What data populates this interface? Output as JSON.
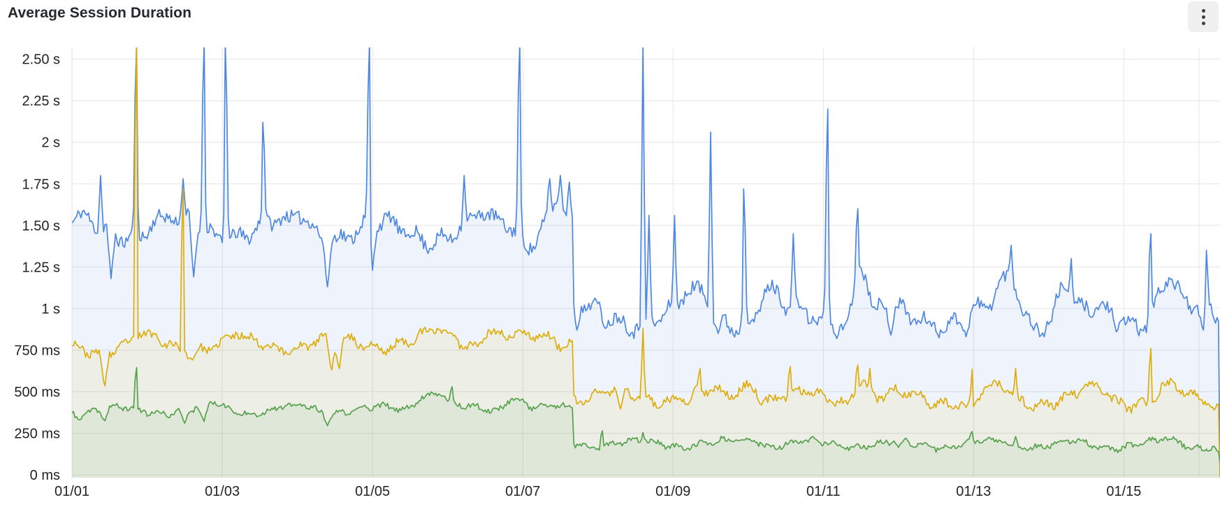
{
  "header": {
    "title": "Average Session Duration",
    "menu_icon": "kebab-vertical"
  },
  "chart_data": {
    "type": "line",
    "title": "Average Session Duration",
    "legend": "none",
    "grid": true,
    "colors": {
      "series_blue": "#4d86e3",
      "series_yellow": "#ddad0c",
      "series_green": "#56a14c",
      "gridline": "#e6e6e6",
      "axis_text": "#1f2226"
    },
    "y_axis": {
      "unit": "duration",
      "display_min_ms": -17,
      "display_max_ms": 2570,
      "ticks": [
        {
          "v": 0,
          "label": "0 ms"
        },
        {
          "v": 250,
          "label": "250 ms"
        },
        {
          "v": 500,
          "label": "500 ms"
        },
        {
          "v": 750,
          "label": "750 ms"
        },
        {
          "v": 1000,
          "label": "1 s"
        },
        {
          "v": 1250,
          "label": "1.25 s"
        },
        {
          "v": 1500,
          "label": "1.50 s"
        },
        {
          "v": 1750,
          "label": "1.75 s"
        },
        {
          "v": 2000,
          "label": "2 s"
        },
        {
          "v": 2250,
          "label": "2.25 s"
        },
        {
          "v": 2500,
          "label": "2.50 s"
        }
      ]
    },
    "x_axis": {
      "unit": "date",
      "domain_days": [
        0,
        15.28
      ],
      "day0_label": "01/01",
      "ticks": [
        {
          "day": 0,
          "label": "01/01"
        },
        {
          "day": 2,
          "label": "01/03"
        },
        {
          "day": 4,
          "label": "01/05"
        },
        {
          "day": 6,
          "label": "01/07"
        },
        {
          "day": 8,
          "label": "01/09"
        },
        {
          "day": 10,
          "label": "01/11"
        },
        {
          "day": 12,
          "label": "01/13"
        },
        {
          "day": 14,
          "label": "01/15"
        },
        {
          "day": 15,
          "label": ""
        }
      ]
    },
    "sample_step_days": 0.02,
    "series": [
      {
        "id": "blue",
        "color": "#4d86e3",
        "fill_opacity": 0.09,
        "line_width": 1.7,
        "seed": 11,
        "noise_ms": 40,
        "spike_width_days": 0.035,
        "dip_width_days": 0.06,
        "wander": [
          {
            "amp": 62,
            "period": 1.35,
            "phase": 0.2
          },
          {
            "amp": 36,
            "period": 0.34,
            "phase": 0.8
          }
        ],
        "baseline_segments_ms": [
          [
            0,
            6.67,
            1490,
            1450
          ],
          [
            6.67,
            15.28,
            955,
            950
          ]
        ],
        "step_drop_day": 6.67,
        "bumps": [
          [
            1.2,
            1560,
            0.25
          ],
          [
            3.0,
            1555,
            0.4
          ],
          [
            5.5,
            1570,
            0.5
          ],
          [
            6.45,
            1660,
            0.3
          ],
          [
            8.3,
            1150,
            0.3
          ],
          [
            9.3,
            1150,
            0.25
          ],
          [
            10.5,
            1280,
            0.2
          ],
          [
            12.45,
            1230,
            0.3
          ],
          [
            13.2,
            1170,
            0.2
          ],
          [
            14.6,
            1190,
            0.35
          ]
        ],
        "spikes": [
          [
            0.38,
            1800
          ],
          [
            0.85,
            2600
          ],
          [
            1.48,
            1780
          ],
          [
            1.75,
            2600
          ],
          [
            2.05,
            2600
          ],
          [
            2.55,
            2120
          ],
          [
            3.95,
            2600
          ],
          [
            5.22,
            1800
          ],
          [
            5.95,
            2600
          ],
          [
            6.35,
            1780
          ],
          [
            6.5,
            1800
          ],
          [
            6.62,
            1760
          ],
          [
            7.6,
            2600
          ],
          [
            7.68,
            1560
          ],
          [
            8.02,
            1560
          ],
          [
            8.5,
            2060
          ],
          [
            8.95,
            1720
          ],
          [
            9.6,
            1450
          ],
          [
            10.05,
            2200
          ],
          [
            10.45,
            1600
          ],
          [
            12.5,
            1380
          ],
          [
            13.3,
            1300
          ],
          [
            14.35,
            1450
          ],
          [
            15.1,
            1350
          ]
        ],
        "dips": [
          [
            0.52,
            1180
          ],
          [
            1.62,
            1190
          ],
          [
            3.4,
            1130
          ],
          [
            4.0,
            1230
          ],
          [
            6.72,
            870
          ],
          [
            7.1,
            880
          ],
          [
            8.6,
            850
          ],
          [
            10.9,
            840
          ],
          [
            11.9,
            830
          ],
          [
            13.9,
            860
          ],
          [
            15.05,
            870
          ]
        ]
      },
      {
        "id": "yellow",
        "color": "#ddad0c",
        "fill_opacity": 0.09,
        "line_width": 1.7,
        "seed": 23,
        "noise_ms": 24,
        "spike_width_days": 0.03,
        "dip_width_days": 0.07,
        "wander": [
          {
            "amp": 40,
            "period": 1.25,
            "phase": 0.45
          },
          {
            "amp": 22,
            "period": 0.33,
            "phase": 0.1
          }
        ],
        "baseline_segments_ms": [
          [
            0,
            6.67,
            770,
            815
          ],
          [
            6.67,
            15.28,
            475,
            450
          ]
        ],
        "step_drop_day": 6.67,
        "bumps": [
          [
            1.0,
            855,
            0.3
          ],
          [
            2.2,
            840,
            0.25
          ],
          [
            4.9,
            875,
            0.35
          ],
          [
            5.6,
            870,
            0.3
          ],
          [
            6.3,
            845,
            0.2
          ],
          [
            9.0,
            555,
            0.25
          ],
          [
            10.5,
            575,
            0.2
          ],
          [
            12.3,
            555,
            0.25
          ],
          [
            13.6,
            545,
            0.3
          ],
          [
            14.6,
            565,
            0.25
          ]
        ],
        "spikes": [
          [
            0.85,
            2600
          ],
          [
            1.47,
            1720
          ],
          [
            7.6,
            880
          ],
          [
            8.35,
            640
          ],
          [
            9.55,
            650
          ],
          [
            10.45,
            660
          ],
          [
            10.62,
            640
          ],
          [
            11.97,
            635
          ],
          [
            12.56,
            640
          ],
          [
            14.35,
            760
          ]
        ],
        "dips": [
          [
            0.43,
            535
          ],
          [
            1.6,
            690
          ],
          [
            3.45,
            630
          ],
          [
            3.55,
            640
          ],
          [
            7.3,
            395
          ],
          [
            8.2,
            420
          ],
          [
            11.9,
            405
          ],
          [
            12.0,
            410
          ],
          [
            15.2,
            390
          ]
        ]
      },
      {
        "id": "green",
        "color": "#56a14c",
        "fill_opacity": 0.09,
        "line_width": 1.7,
        "seed": 37,
        "noise_ms": 15,
        "spike_width_days": 0.03,
        "dip_width_days": 0.07,
        "wander": [
          {
            "amp": 22,
            "period": 1.15,
            "phase": 0.7
          },
          {
            "amp": 12,
            "period": 0.3,
            "phase": 0.4
          }
        ],
        "baseline_segments_ms": [
          [
            0,
            6.67,
            385,
            395
          ],
          [
            6.67,
            15.28,
            188,
            178
          ]
        ],
        "step_drop_day": 6.67,
        "bumps": [
          [
            1.9,
            430,
            0.3
          ],
          [
            3.0,
            420,
            0.3
          ],
          [
            4.8,
            505,
            0.45
          ],
          [
            5.9,
            470,
            0.3
          ],
          [
            9.0,
            212,
            0.3
          ],
          [
            12.3,
            212,
            0.3
          ],
          [
            14.6,
            222,
            0.3
          ]
        ],
        "spikes": [
          [
            0.85,
            645
          ],
          [
            1.75,
            485
          ],
          [
            5.05,
            530
          ],
          [
            7.05,
            265
          ],
          [
            7.6,
            255
          ],
          [
            11.97,
            260
          ],
          [
            12.56,
            230
          ]
        ],
        "dips": [
          [
            0.1,
            330
          ],
          [
            0.43,
            325
          ],
          [
            1.5,
            310
          ],
          [
            1.75,
            320
          ],
          [
            3.4,
            295
          ],
          [
            6.9,
            160
          ],
          [
            11.0,
            165
          ],
          [
            15.25,
            140
          ]
        ]
      }
    ]
  }
}
